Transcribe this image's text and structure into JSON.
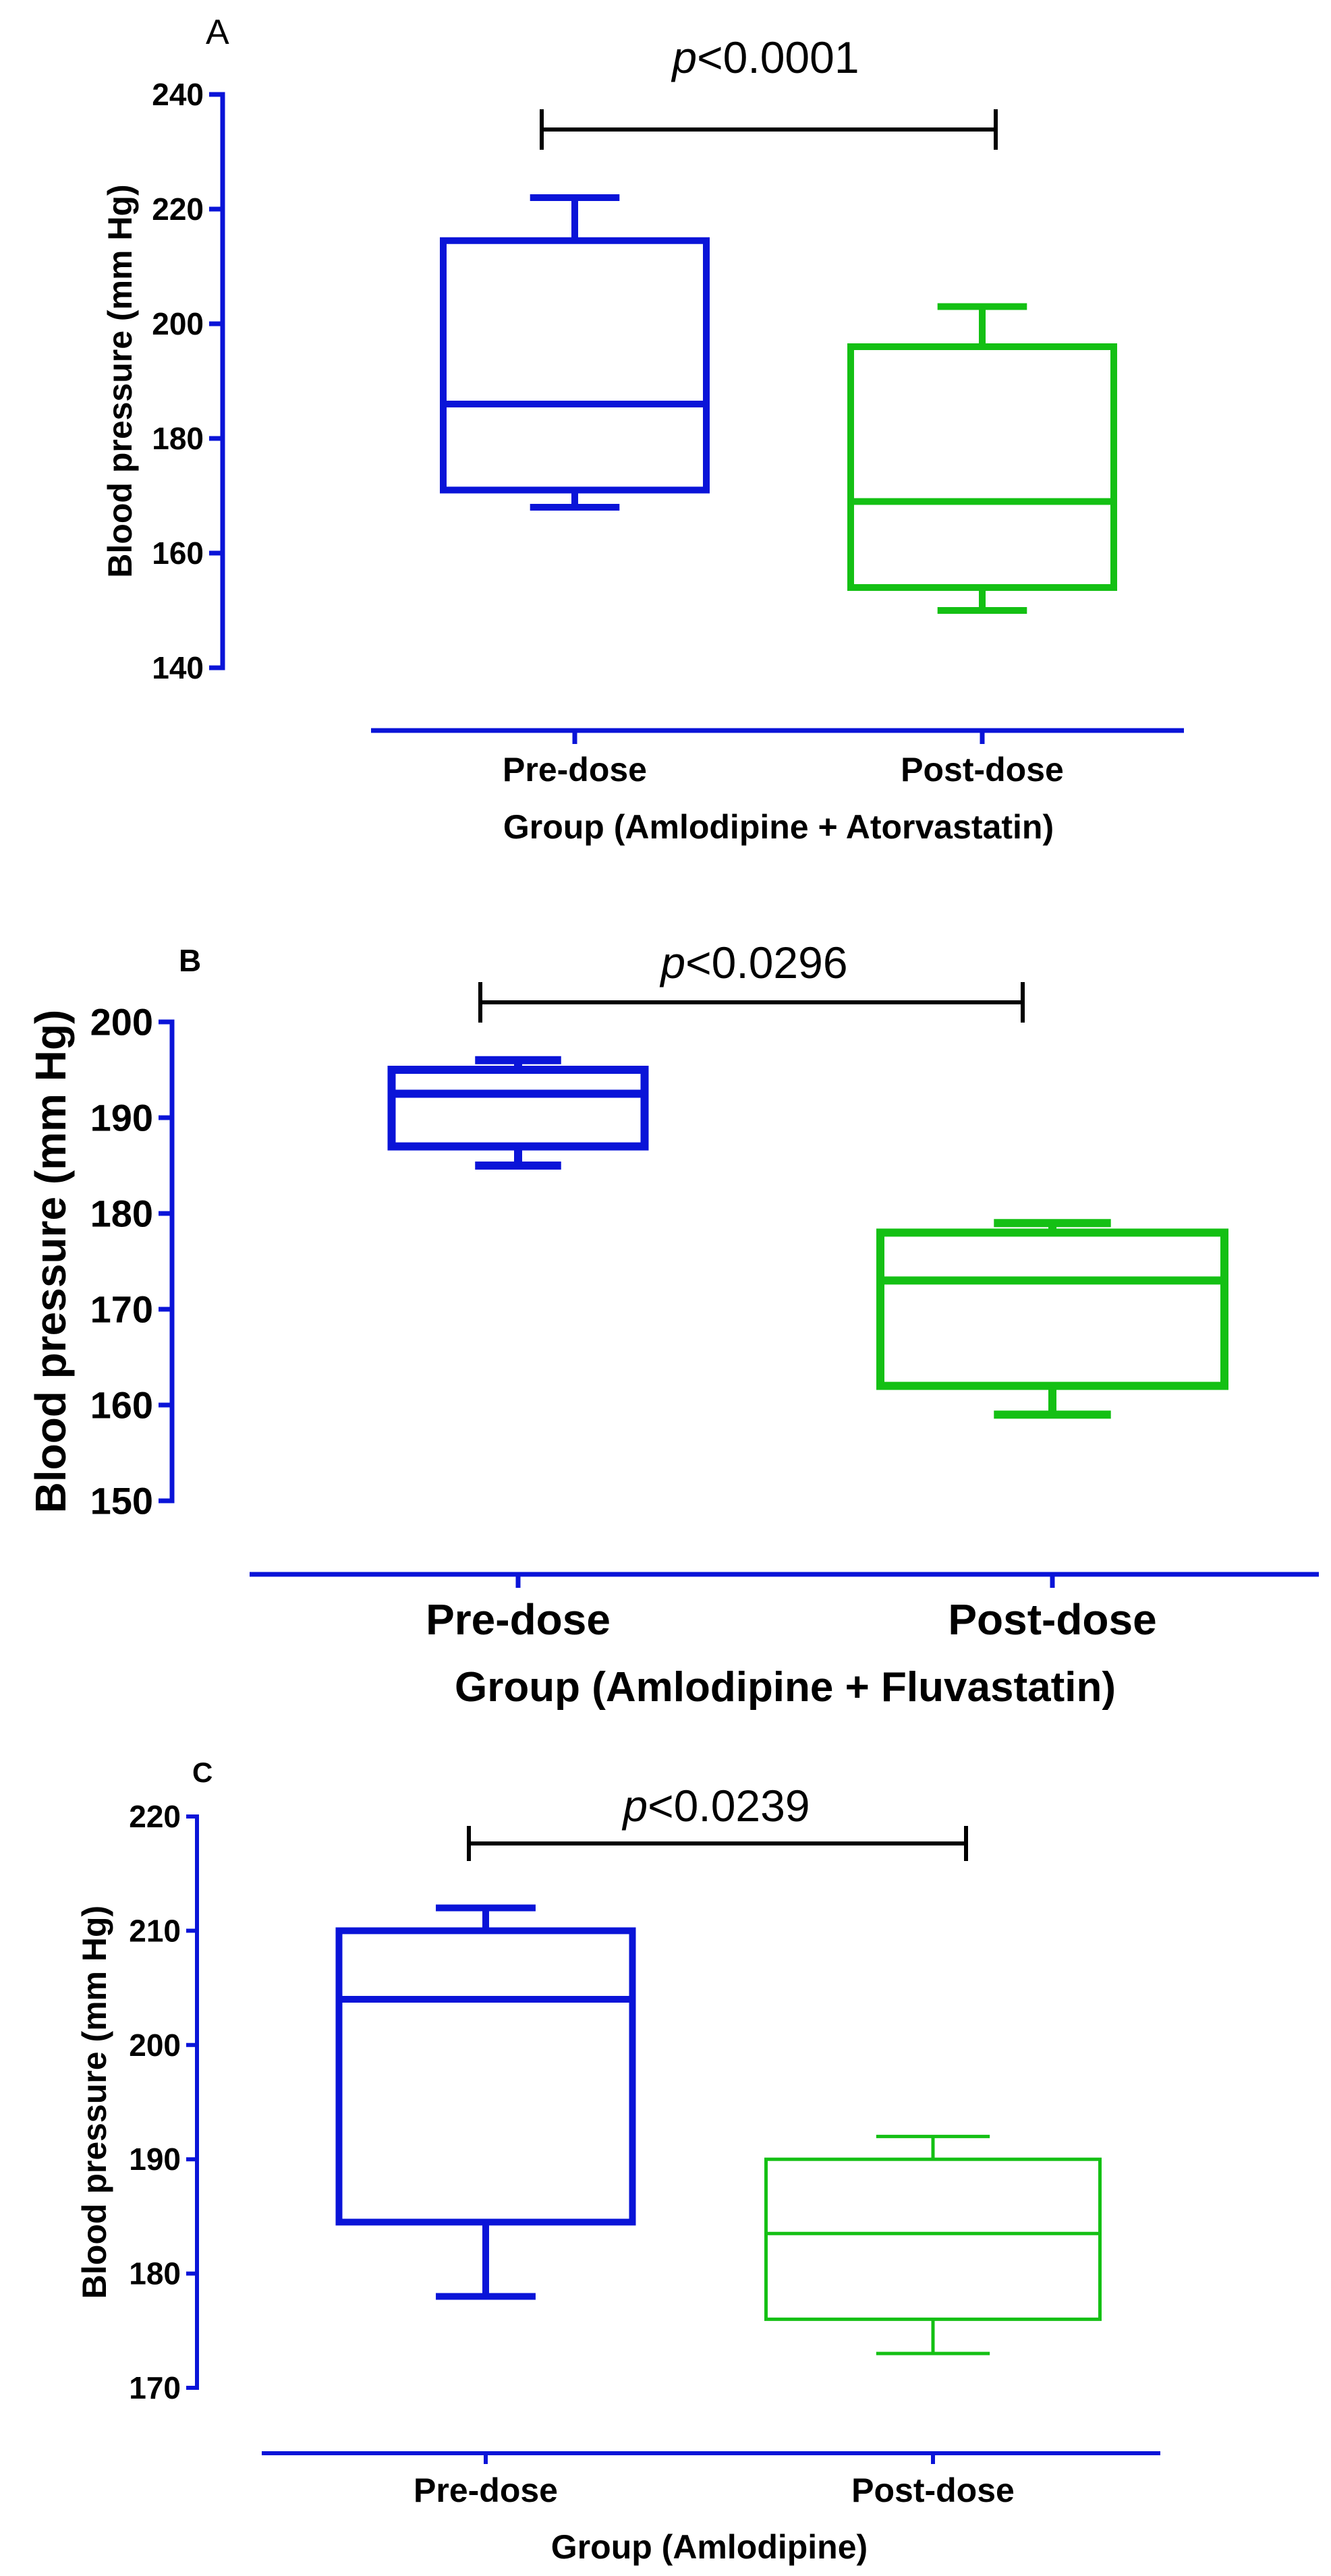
{
  "colors": {
    "pre": "#0a14d8",
    "post": "#14c014",
    "axis": "#0a14d8",
    "text": "#000000"
  },
  "chart_data": [
    {
      "type": "box",
      "panel_label": "A",
      "xlabel": "Group (Amlodipine + Atorvastatin)",
      "ylabel": "Blood pressure (mm Hg)",
      "ylim": [
        140,
        240
      ],
      "yticks": [
        140,
        160,
        180,
        200,
        220,
        240
      ],
      "categories": [
        "Pre-dose",
        "Post-dose"
      ],
      "series": [
        {
          "category": "Pre-dose",
          "min": 168,
          "q1": 171,
          "median": 186,
          "q3": 214.5,
          "max": 222
        },
        {
          "category": "Post-dose",
          "min": 150,
          "q1": 154,
          "median": 169,
          "q3": 196,
          "max": 203
        }
      ],
      "annotation": {
        "prefix": "p",
        "text": "<0.0001"
      }
    },
    {
      "type": "box",
      "panel_label": "B",
      "xlabel": "Group (Amlodipine + Fluvastatin)",
      "ylabel": "Blood pressure (mm Hg)",
      "ylim": [
        150,
        200
      ],
      "yticks": [
        150,
        160,
        170,
        180,
        190,
        200
      ],
      "categories": [
        "Pre-dose",
        "Post-dose"
      ],
      "series": [
        {
          "category": "Pre-dose",
          "min": 185,
          "q1": 187,
          "median": 192.5,
          "q3": 195,
          "max": 196
        },
        {
          "category": "Post-dose",
          "min": 159,
          "q1": 162,
          "median": 173,
          "q3": 178,
          "max": 179
        }
      ],
      "annotation": {
        "prefix": "p",
        "text": "<0.0296"
      }
    },
    {
      "type": "box",
      "panel_label": "C",
      "xlabel": "Group (Amlodipine)",
      "ylabel": "Blood pressure (mm Hg)",
      "ylim": [
        170,
        220
      ],
      "yticks": [
        170,
        180,
        190,
        200,
        210,
        220
      ],
      "categories": [
        "Pre-dose",
        "Post-dose"
      ],
      "series": [
        {
          "category": "Pre-dose",
          "min": 178,
          "q1": 184.5,
          "median": 204,
          "q3": 210,
          "max": 212
        },
        {
          "category": "Post-dose",
          "min": 173,
          "q1": 176,
          "median": 183.5,
          "q3": 190,
          "max": 192
        }
      ],
      "annotation": {
        "prefix": "p",
        "text": "<0.0239"
      }
    }
  ]
}
